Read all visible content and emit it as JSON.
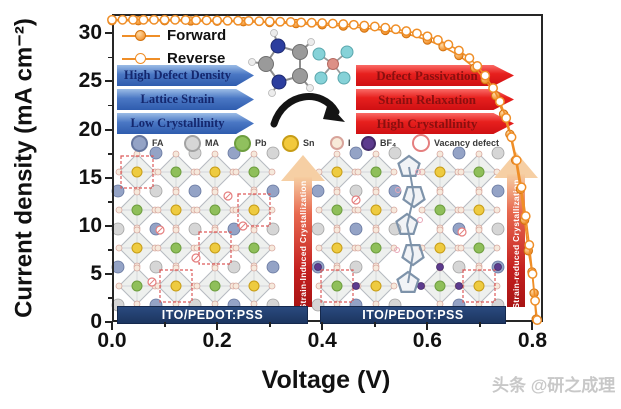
{
  "figure": {
    "watermark": "头条 @研之成理"
  },
  "axes": {
    "x_label": "Voltage (V)",
    "y_label": "Current density (mA cm⁻²)",
    "x_range": [
      0,
      0.82
    ],
    "y_range": [
      0,
      32
    ],
    "x_ticks": [
      {
        "v": 0.0,
        "label": "0.0"
      },
      {
        "v": 0.2,
        "label": "0.2"
      },
      {
        "v": 0.4,
        "label": "0.4"
      },
      {
        "v": 0.6,
        "label": "0.6"
      },
      {
        "v": 0.8,
        "label": "0.8"
      }
    ],
    "y_ticks": [
      {
        "v": 0,
        "label": "0"
      },
      {
        "v": 5,
        "label": "5"
      },
      {
        "v": 10,
        "label": "10"
      },
      {
        "v": 15,
        "label": "15"
      },
      {
        "v": 20,
        "label": "20"
      },
      {
        "v": 25,
        "label": "25"
      },
      {
        "v": 30,
        "label": "30"
      }
    ],
    "x_minor_ticks": [
      0.1,
      0.3,
      0.5,
      0.7
    ],
    "y_minor_ticks": [
      2.5,
      7.5,
      12.5,
      17.5,
      22.5,
      27.5
    ],
    "grid": false
  },
  "process_arrows": {
    "left_color": "#3f6cbf",
    "right_color": "#e01d1f",
    "left_items": [
      "High Defect Density",
      "Lattice Strain",
      "Low Crystallinity"
    ],
    "right_items": [
      "Defect Passivation",
      "Strain Relaxation",
      "High Crystallinity"
    ]
  },
  "species_legend": [
    {
      "label": "FA",
      "fill": "#94a3c6",
      "stroke": "#67779f",
      "size": 17,
      "open": false
    },
    {
      "label": "MA",
      "fill": "#d6d6d6",
      "stroke": "#a3a3a3",
      "size": 17,
      "open": false
    },
    {
      "label": "Pb",
      "fill": "#90c05e",
      "stroke": "#6e9e3f",
      "size": 17,
      "open": false
    },
    {
      "label": "Sn",
      "fill": "#f2c93d",
      "stroke": "#c79d17",
      "size": 17,
      "open": false
    },
    {
      "label": "I",
      "fill": "#f8ead9",
      "stroke": "#d8a49b",
      "size": 14,
      "open": false
    },
    {
      "label": "BF₄",
      "fill": "#5d3b8e",
      "stroke": "#432a69",
      "size": 15,
      "open": false
    },
    {
      "label": "Vacancy defect",
      "fill": "none",
      "stroke": "#e57f7f",
      "size": 18,
      "open": true
    }
  ],
  "crystallization_arrows": {
    "left": "Strain-Induced Crystallization",
    "right": "Strain-reduced Crystallization"
  },
  "substrate_label": "ITO/PEDOT:PSS",
  "chart_data": {
    "type": "line",
    "title": "",
    "xlabel": "Voltage (V)",
    "ylabel": "Current density (mA cm⁻²)",
    "xlim": [
      0,
      0.82
    ],
    "ylim": [
      0,
      32
    ],
    "grid": false,
    "legend_position": "top-left",
    "curve_color": "#ef8e27",
    "series": [
      {
        "name": "Forward",
        "marker": "filled",
        "points": [
          [
            0.0,
            31.3
          ],
          [
            0.05,
            31.3
          ],
          [
            0.1,
            31.3
          ],
          [
            0.15,
            31.28
          ],
          [
            0.2,
            31.25
          ],
          [
            0.25,
            31.2
          ],
          [
            0.3,
            31.12
          ],
          [
            0.35,
            31.0
          ],
          [
            0.4,
            30.88
          ],
          [
            0.44,
            30.75
          ],
          [
            0.48,
            30.55
          ],
          [
            0.52,
            30.3
          ],
          [
            0.56,
            29.95
          ],
          [
            0.6,
            29.3
          ],
          [
            0.63,
            28.6
          ],
          [
            0.66,
            27.7
          ],
          [
            0.69,
            26.4
          ],
          [
            0.71,
            25.2
          ],
          [
            0.73,
            23.5
          ],
          [
            0.745,
            21.6
          ],
          [
            0.757,
            19.5
          ],
          [
            0.768,
            16.8
          ],
          [
            0.777,
            13.8
          ],
          [
            0.785,
            10.6
          ],
          [
            0.792,
            7.4
          ],
          [
            0.799,
            5.2
          ],
          [
            0.803,
            3.0
          ],
          [
            0.807,
            0.3
          ]
        ]
      },
      {
        "name": "Reverse",
        "marker": "open",
        "points": [
          [
            0.0,
            31.4
          ],
          [
            0.02,
            31.4
          ],
          [
            0.04,
            31.4
          ],
          [
            0.06,
            31.4
          ],
          [
            0.08,
            31.4
          ],
          [
            0.1,
            31.4
          ],
          [
            0.12,
            31.4
          ],
          [
            0.14,
            31.38
          ],
          [
            0.16,
            31.36
          ],
          [
            0.18,
            31.35
          ],
          [
            0.2,
            31.33
          ],
          [
            0.22,
            31.3
          ],
          [
            0.24,
            31.3
          ],
          [
            0.26,
            31.28
          ],
          [
            0.28,
            31.25
          ],
          [
            0.3,
            31.22
          ],
          [
            0.32,
            31.2
          ],
          [
            0.34,
            31.17
          ],
          [
            0.36,
            31.13
          ],
          [
            0.38,
            31.1
          ],
          [
            0.4,
            31.05
          ],
          [
            0.42,
            31.0
          ],
          [
            0.44,
            30.95
          ],
          [
            0.46,
            30.88
          ],
          [
            0.48,
            30.8
          ],
          [
            0.5,
            30.7
          ],
          [
            0.52,
            30.58
          ],
          [
            0.54,
            30.42
          ],
          [
            0.56,
            30.22
          ],
          [
            0.58,
            29.98
          ],
          [
            0.6,
            29.68
          ],
          [
            0.62,
            29.3
          ],
          [
            0.64,
            28.82
          ],
          [
            0.66,
            28.2
          ],
          [
            0.68,
            27.42
          ],
          [
            0.695,
            26.6
          ],
          [
            0.71,
            25.6
          ],
          [
            0.725,
            24.3
          ],
          [
            0.738,
            22.9
          ],
          [
            0.75,
            21.2
          ],
          [
            0.76,
            19.2
          ],
          [
            0.77,
            16.8
          ],
          [
            0.779,
            14.0
          ],
          [
            0.787,
            11.0
          ],
          [
            0.794,
            8.0
          ],
          [
            0.8,
            5.0
          ],
          [
            0.805,
            2.2
          ],
          [
            0.809,
            0.2
          ]
        ]
      }
    ]
  }
}
